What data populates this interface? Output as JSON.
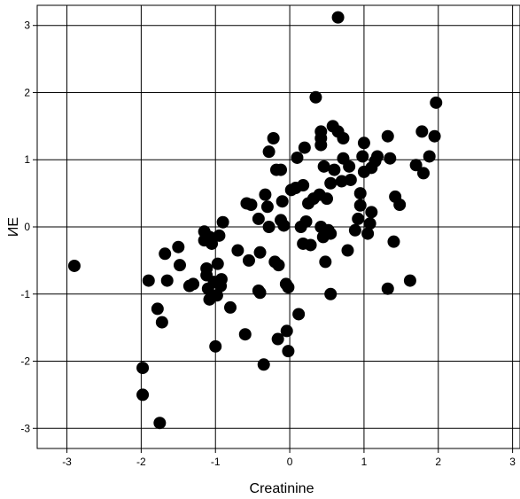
{
  "chart_data": {
    "type": "scatter",
    "xlabel": "Creatinine",
    "ylabel": "ИE",
    "xlim": [
      -3.4,
      3.1
    ],
    "ylim": [
      -3.3,
      3.3
    ],
    "xticks": [
      -3,
      -2,
      -1,
      0,
      1,
      2,
      3
    ],
    "yticks": [
      -3,
      -2,
      -1,
      0,
      1,
      2,
      3
    ],
    "grid": true,
    "marker_color": "#000000",
    "series": [
      {
        "points": [
          [
            -2.9,
            -0.58
          ],
          [
            -1.98,
            -2.1
          ],
          [
            -1.98,
            -2.5
          ],
          [
            -1.75,
            -2.92
          ],
          [
            -1.9,
            -0.8
          ],
          [
            -1.78,
            -1.22
          ],
          [
            -1.72,
            -1.42
          ],
          [
            -1.68,
            -0.4
          ],
          [
            -1.65,
            -0.8
          ],
          [
            -1.5,
            -0.3
          ],
          [
            -1.48,
            -0.57
          ],
          [
            -1.35,
            -0.88
          ],
          [
            -1.3,
            -0.85
          ],
          [
            -1.15,
            -0.07
          ],
          [
            -1.15,
            -0.2
          ],
          [
            -1.12,
            -0.62
          ],
          [
            -1.12,
            -0.72
          ],
          [
            -1.1,
            -0.92
          ],
          [
            -1.08,
            -1.08
          ],
          [
            -1.08,
            -0.15
          ],
          [
            -1.05,
            -0.25
          ],
          [
            -1.02,
            -0.82
          ],
          [
            -1.0,
            -1.78
          ],
          [
            -0.98,
            -1.02
          ],
          [
            -0.97,
            -0.55
          ],
          [
            -0.95,
            -0.13
          ],
          [
            -0.93,
            -0.88
          ],
          [
            -0.92,
            -0.78
          ],
          [
            -0.9,
            0.07
          ],
          [
            -0.8,
            -1.2
          ],
          [
            -0.7,
            -0.35
          ],
          [
            -0.6,
            -1.6
          ],
          [
            -0.58,
            0.35
          ],
          [
            -0.55,
            -0.5
          ],
          [
            -0.52,
            0.33
          ],
          [
            -0.42,
            0.12
          ],
          [
            -0.42,
            -0.95
          ],
          [
            -0.4,
            -0.98
          ],
          [
            -0.4,
            -0.38
          ],
          [
            -0.35,
            -2.05
          ],
          [
            -0.33,
            0.48
          ],
          [
            -0.3,
            0.3
          ],
          [
            -0.28,
            1.12
          ],
          [
            -0.28,
            0.0
          ],
          [
            -0.22,
            1.32
          ],
          [
            -0.2,
            -0.52
          ],
          [
            -0.18,
            0.85
          ],
          [
            -0.16,
            -1.67
          ],
          [
            -0.15,
            -0.57
          ],
          [
            -0.12,
            0.85
          ],
          [
            -0.12,
            0.1
          ],
          [
            -0.1,
            0.38
          ],
          [
            -0.08,
            0.02
          ],
          [
            -0.05,
            -0.85
          ],
          [
            -0.04,
            -1.55
          ],
          [
            -0.02,
            -0.9
          ],
          [
            -0.02,
            -1.85
          ],
          [
            0.02,
            0.55
          ],
          [
            0.08,
            0.58
          ],
          [
            0.1,
            1.03
          ],
          [
            0.12,
            -1.3
          ],
          [
            0.15,
            0.0
          ],
          [
            0.18,
            0.62
          ],
          [
            0.18,
            -0.25
          ],
          [
            0.2,
            1.18
          ],
          [
            0.22,
            0.08
          ],
          [
            0.25,
            0.35
          ],
          [
            0.28,
            -0.27
          ],
          [
            0.32,
            0.42
          ],
          [
            0.35,
            1.93
          ],
          [
            0.4,
            0.48
          ],
          [
            0.42,
            1.22
          ],
          [
            0.42,
            1.42
          ],
          [
            0.42,
            1.32
          ],
          [
            0.42,
            0.0
          ],
          [
            0.45,
            -0.15
          ],
          [
            0.46,
            0.9
          ],
          [
            0.48,
            -0.52
          ],
          [
            0.5,
            0.42
          ],
          [
            0.52,
            -0.05
          ],
          [
            0.55,
            -0.1
          ],
          [
            0.55,
            -1.0
          ],
          [
            0.55,
            0.65
          ],
          [
            0.58,
            1.5
          ],
          [
            0.6,
            0.85
          ],
          [
            0.65,
            3.12
          ],
          [
            0.65,
            1.42
          ],
          [
            0.7,
            0.68
          ],
          [
            0.72,
            1.02
          ],
          [
            0.72,
            1.32
          ],
          [
            0.78,
            -0.35
          ],
          [
            0.8,
            0.9
          ],
          [
            0.82,
            0.7
          ],
          [
            0.88,
            -0.05
          ],
          [
            0.92,
            0.12
          ],
          [
            0.95,
            0.5
          ],
          [
            0.95,
            0.32
          ],
          [
            0.98,
            1.05
          ],
          [
            1.0,
            0.82
          ],
          [
            1.0,
            1.25
          ],
          [
            1.05,
            -0.1
          ],
          [
            1.08,
            0.05
          ],
          [
            1.1,
            0.88
          ],
          [
            1.1,
            0.22
          ],
          [
            1.15,
            0.98
          ],
          [
            1.18,
            1.05
          ],
          [
            1.32,
            -0.92
          ],
          [
            1.32,
            1.35
          ],
          [
            1.35,
            1.02
          ],
          [
            1.4,
            -0.22
          ],
          [
            1.42,
            0.45
          ],
          [
            1.48,
            0.33
          ],
          [
            1.62,
            -0.8
          ],
          [
            1.7,
            0.92
          ],
          [
            1.78,
            1.42
          ],
          [
            1.8,
            0.8
          ],
          [
            1.88,
            1.05
          ],
          [
            1.95,
            1.35
          ],
          [
            1.97,
            1.85
          ]
        ]
      }
    ]
  }
}
